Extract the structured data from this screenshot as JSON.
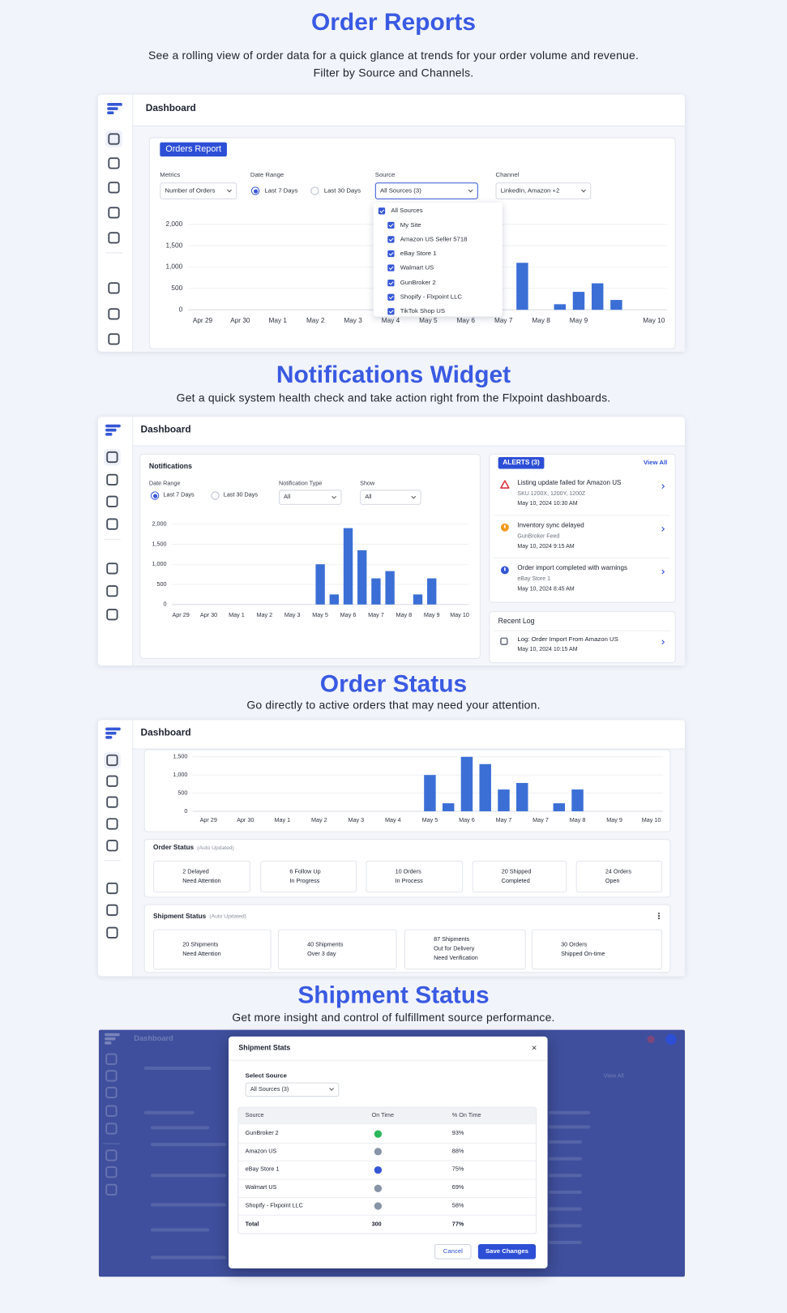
{
  "sections": [
    {
      "title": "Order Reports",
      "subtitle": [
        "See a rolling view of order data for a quick glance at trends for your order volume and revenue.",
        "Filter by Source and Channels."
      ]
    },
    {
      "title": "Notifications Widget",
      "subtitle": [
        "Get a quick system health check and take action right from the Flxpoint dashboards."
      ]
    },
    {
      "title": "Order Status",
      "subtitle": [
        "Go directly to active orders that may need your attention."
      ]
    },
    {
      "title": "Shipment Status",
      "subtitle": [
        "Get more insight and control of fulfillment source performance."
      ]
    }
  ],
  "order_reports": {
    "header": "Dashboard",
    "card_title": "Orders Report",
    "metrics": {
      "label": "Metrics",
      "value": "Number of Orders"
    },
    "date_range": {
      "label": "Date Range",
      "options": [
        "Last 7 Days",
        "Last 30 Days"
      ],
      "selected": 0
    },
    "source": {
      "label": "Source",
      "value": "All Sources (3)",
      "options": [
        "All Sources",
        "My Site",
        "Amazon US Seller 5718",
        "eBay Store 1",
        "Walmart US",
        "GunBroker 2",
        "Shopify - Flxpoint LLC",
        "TikTok Shop US"
      ]
    },
    "channel": {
      "label": "Channel",
      "value": "LinkedIn, Amazon +2"
    },
    "chart_data": {
      "type": "bar",
      "color": "#3b6fd6",
      "grid": true,
      "categories": [
        "Apr 29",
        null,
        "Apr 30",
        null,
        "May 1",
        null,
        "May 2",
        null,
        "May 3",
        null,
        "May 4",
        null,
        "May 5",
        null,
        "May 6",
        null,
        "May 7",
        null,
        "May 8",
        null,
        "May 9",
        null,
        null,
        null,
        "May 10"
      ],
      "values": [
        0,
        0,
        0,
        0,
        0,
        0,
        0,
        0,
        0,
        null,
        null,
        null,
        null,
        null,
        null,
        null,
        null,
        1100,
        0,
        130,
        420,
        620,
        230,
        0,
        0
      ],
      "ylim": [
        0,
        2000
      ],
      "yticks": [
        0,
        500,
        {
          "value": 1000,
          "label": "1,000"
        },
        {
          "value": 1500,
          "label": "1,500"
        },
        {
          "value": 2000,
          "label": "2,000"
        }
      ]
    }
  },
  "notifications": {
    "header": "Dashboard",
    "title": "Notifications",
    "date_range": {
      "label": "Date Range",
      "options": [
        "Last 7 Days",
        "Last 30 Days"
      ],
      "selected": 0
    },
    "notification_type": {
      "label": "Notification Type",
      "value": "All"
    },
    "show": {
      "label": "Show",
      "value": "All"
    },
    "chart_data": {
      "type": "bar",
      "color": "#3b6fd6",
      "grid": true,
      "categories": [
        "Apr 29",
        null,
        "Apr 30",
        null,
        "May 1",
        null,
        "May 2",
        null,
        "May 3",
        null,
        "May 5",
        null,
        "May 6",
        null,
        "May 7",
        null,
        "May 8",
        null,
        "May 9",
        null,
        "May 10"
      ],
      "values": [
        0,
        0,
        0,
        0,
        0,
        0,
        0,
        0,
        0,
        0,
        1000,
        250,
        1900,
        1350,
        650,
        830,
        0,
        250,
        650,
        0,
        0
      ],
      "ylim": [
        0,
        2000
      ],
      "yticks": [
        0,
        500,
        {
          "value": 1000,
          "label": "1,000"
        },
        {
          "value": 1500,
          "label": "1,500"
        },
        {
          "value": 2000,
          "label": "2,000"
        }
      ]
    },
    "alerts": {
      "title": "ALERTS (3)",
      "view_all": "View All",
      "items": [
        {
          "icon": "triangle",
          "color": "#d9363e",
          "title": "Listing update failed for Amazon US",
          "detail": "SKU 1200X, 1200Y, 1200Z",
          "time": "May 10, 2024  10:30 AM"
        },
        {
          "icon": "alert",
          "color": "#f29a1f",
          "title": "Inventory sync delayed",
          "detail": "GunBroker Feed",
          "time": "May 10, 2024  9:15 AM"
        },
        {
          "icon": "alert",
          "color": "#3557d6",
          "title": "Order import completed with warnings",
          "detail": "eBay Store 1",
          "time": "May 10, 2024  8:45 AM"
        }
      ]
    },
    "recent_log": {
      "title": "Recent Log",
      "items": [
        {
          "title": "Log: Order Import From Amazon US",
          "time": "May 10, 2024  10:15 AM"
        }
      ]
    }
  },
  "order_status": {
    "header": "Dashboard",
    "chart_data": {
      "type": "bar",
      "color": "#3b6fd6",
      "grid": true,
      "categories": [
        "Apr 29",
        null,
        "Apr 30",
        null,
        "May 1",
        null,
        "May 2",
        null,
        "May 3",
        null,
        "May 4",
        null,
        "May 5",
        null,
        "May 6",
        null,
        "May 7",
        null,
        "May 7",
        null,
        "May 8",
        null,
        "May 9",
        null,
        "May 10"
      ],
      "values": [
        0,
        0,
        0,
        0,
        0,
        0,
        0,
        0,
        0,
        0,
        0,
        0,
        1000,
        220,
        1500,
        1300,
        600,
        780,
        0,
        220,
        600,
        0,
        0,
        0,
        0
      ],
      "ylim": [
        0,
        1500
      ],
      "yticks": [
        0,
        500,
        {
          "value": 1000,
          "label": "1,000"
        },
        {
          "value": 1500,
          "label": "1,500"
        }
      ]
    },
    "order_status": {
      "title": "Order Status",
      "note": "(Auto Updated)",
      "tiles": [
        {
          "icon": "ring",
          "color": "#d9363e",
          "lines": [
            "2 Delayed",
            "Need Attention"
          ]
        },
        {
          "icon": "alert",
          "color": "#f29a1f",
          "lines": [
            "6 Follow Up",
            "In Progress"
          ]
        },
        {
          "icon": "ring",
          "color": "#3557d6",
          "lines": [
            "10 Orders",
            "In Process"
          ]
        },
        {
          "icon": "square",
          "color": "#2ea55a",
          "lines": [
            "20 Shipped",
            "Completed"
          ]
        },
        {
          "icon": "square",
          "color": "#6b7280",
          "lines": [
            "24 Orders",
            "Open"
          ]
        }
      ]
    },
    "shipment_status": {
      "title": "Shipment Status",
      "note": "(Auto Updated)",
      "tiles": [
        {
          "icon": "triangle",
          "color": "#d9363e",
          "lines": [
            "20 Shipments",
            "Need Attention"
          ]
        },
        {
          "icon": "alert",
          "color": "#f29a1f",
          "lines": [
            "40 Shipments",
            "Over 3 day"
          ]
        },
        {
          "icon": "square",
          "color": "#3557d6",
          "lines": [
            "87 Shipments",
            "Out for Delivery",
            "Need Verification"
          ]
        },
        {
          "icon": "ring",
          "color": "#2ea55a",
          "lines": [
            "30 Orders",
            "Shipped On-time"
          ]
        }
      ]
    }
  },
  "shipment_stats": {
    "background": {
      "header": "Dashboard",
      "link": "View All"
    },
    "modal": {
      "title": "Shipment Stats",
      "close": "×",
      "select_label": "Select Source",
      "select_value": "All Sources (3)",
      "columns": [
        "Source",
        "On Time",
        "% On Time"
      ],
      "rows": [
        {
          "source": "GunBroker 2",
          "dot_color": "#2bb75a",
          "pct": "93%"
        },
        {
          "source": "Amazon US",
          "dot_color": "#8793a6",
          "pct": "88%"
        },
        {
          "source": "eBay Store 1",
          "dot_color": "#3557d6",
          "pct": "75%"
        },
        {
          "source": "Walmart US",
          "dot_color": "#8793a6",
          "pct": "69%"
        },
        {
          "source": "Shopify - Flxpoint LLC",
          "dot_color": "#8793a6",
          "pct": "58%"
        }
      ],
      "total": [
        "Total",
        "300",
        "77%"
      ],
      "cancel": "Cancel",
      "save": "Save Changes"
    }
  }
}
